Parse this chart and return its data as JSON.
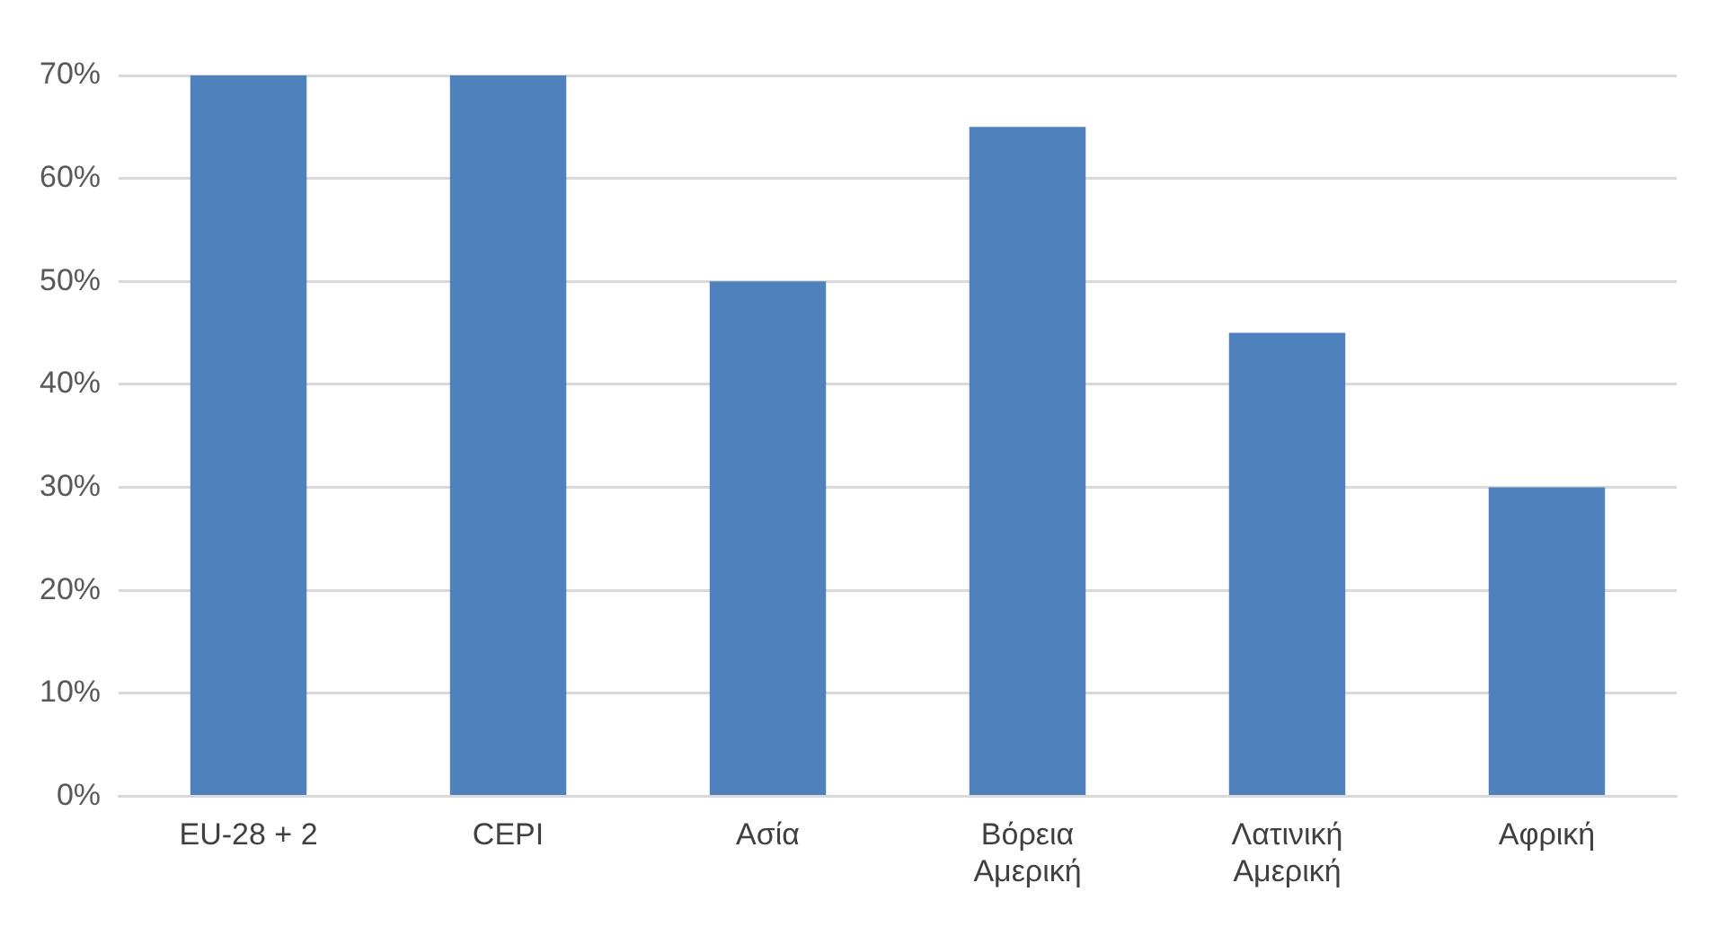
{
  "chart_data": {
    "type": "bar",
    "categories": [
      "EU-28 + 2",
      "CEPI",
      "Ασία",
      "Βόρεια Αμερική",
      "Λατινική Αμερική",
      "Αφρική"
    ],
    "values": [
      70,
      70,
      50,
      65,
      45,
      30
    ],
    "color": "#4f81bd",
    "ylim": [
      0,
      70
    ],
    "yticks": [
      {
        "value": 0,
        "label": "0%"
      },
      {
        "value": 10,
        "label": "10%"
      },
      {
        "value": 20,
        "label": "20%"
      },
      {
        "value": 30,
        "label": "30%"
      },
      {
        "value": 40,
        "label": "40%"
      },
      {
        "value": 50,
        "label": "50%"
      },
      {
        "value": 60,
        "label": "60%"
      },
      {
        "value": 70,
        "label": "70%"
      }
    ],
    "grid": "y",
    "legend": false
  }
}
